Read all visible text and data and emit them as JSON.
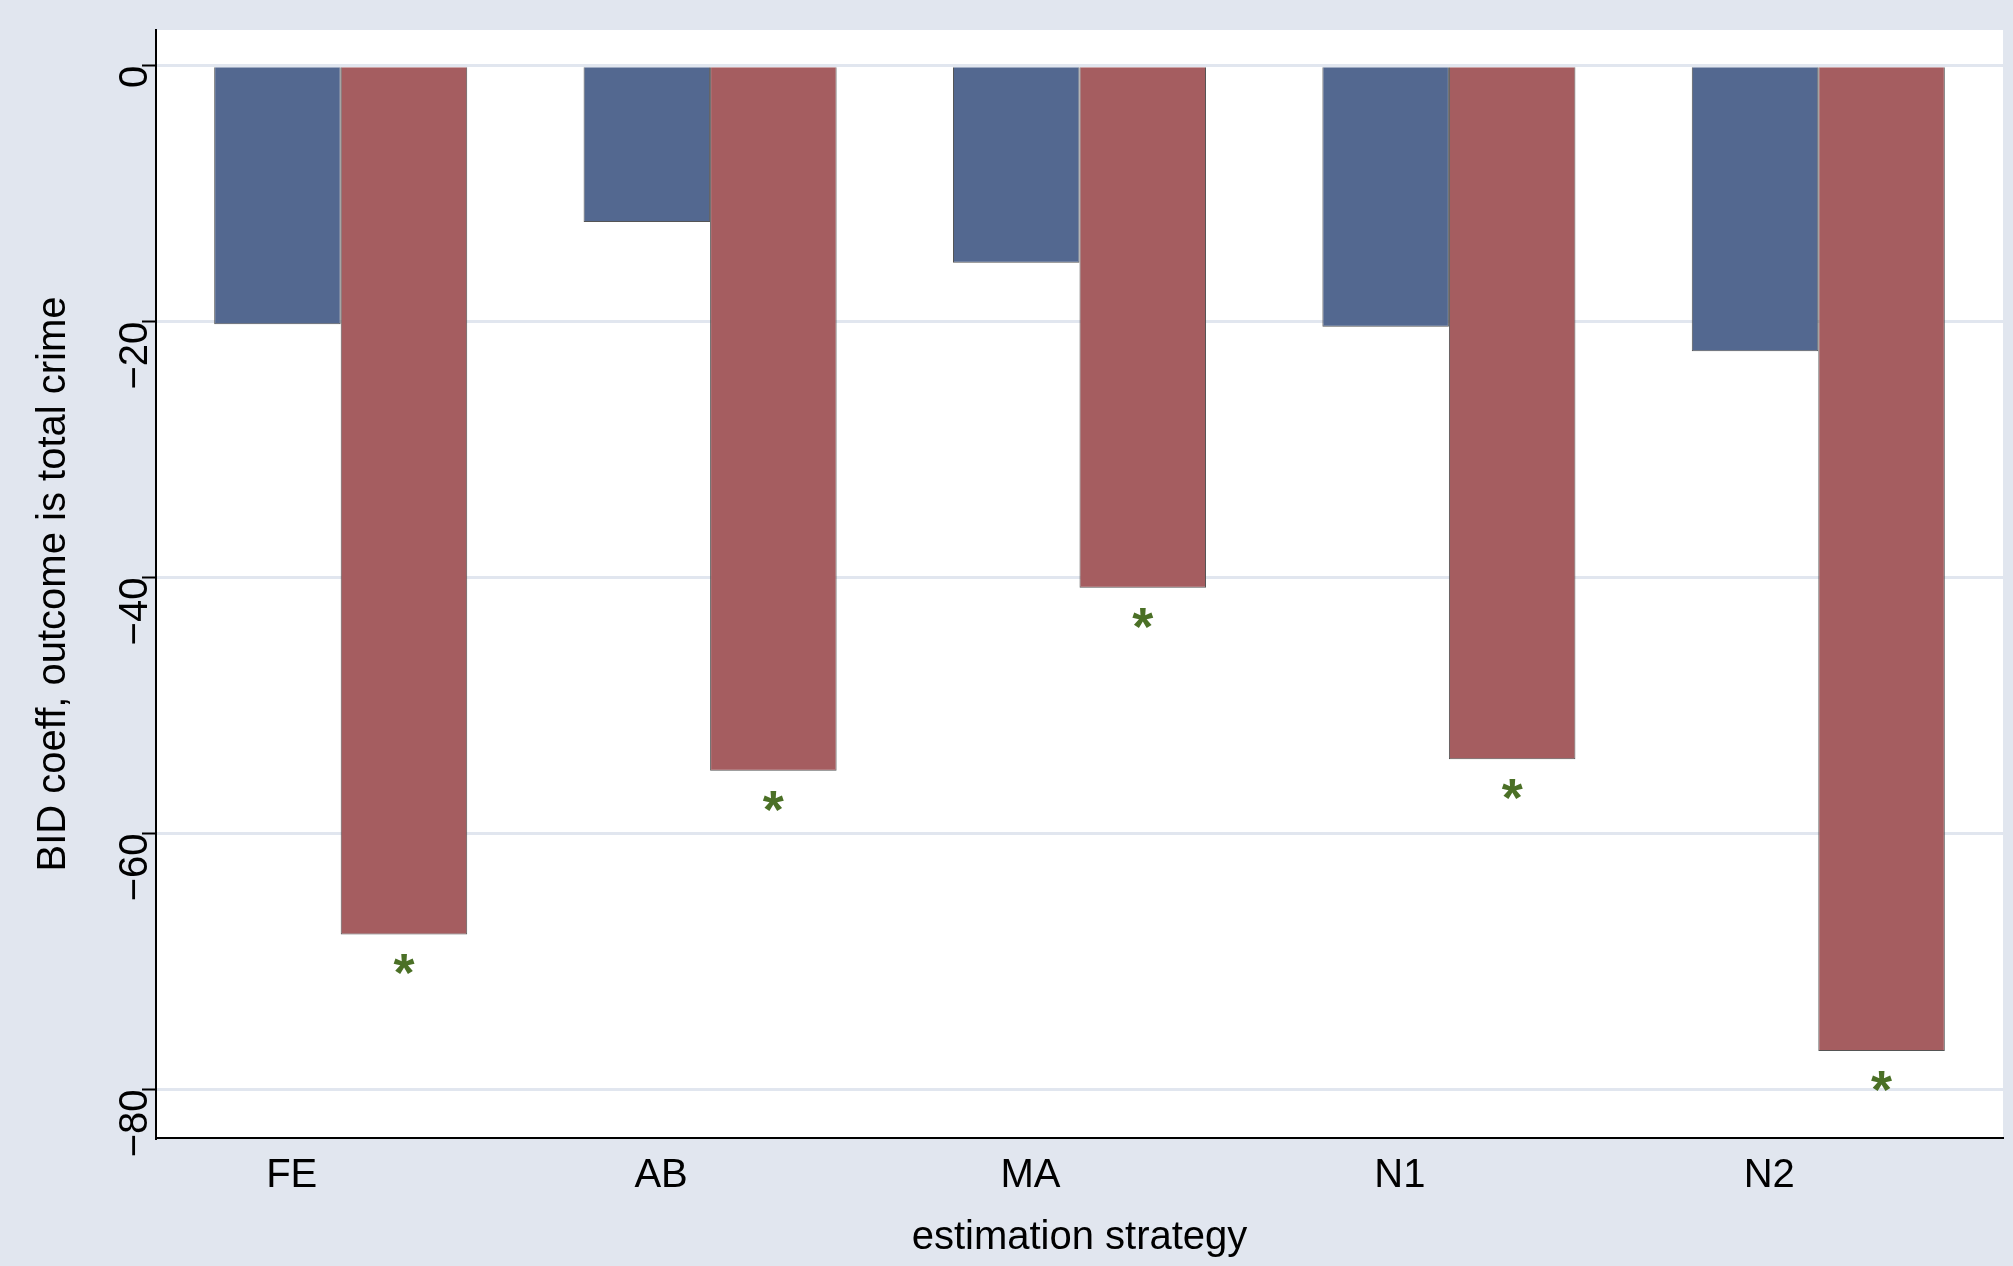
{
  "chart_data": {
    "type": "bar",
    "xlabel": "estimation strategy",
    "ylabel": "BID coeff, outcome is total crime",
    "categories": [
      "FE",
      "AB",
      "MA",
      "N1",
      "N2"
    ],
    "series": [
      {
        "color": "#536890",
        "values": [
          -20.2,
          -12.2,
          -15.4,
          -20.4,
          -22.3
        ]
      },
      {
        "color": "#a55d60",
        "values": [
          -67.9,
          -55.1,
          -40.8,
          -54.2,
          -77.0
        ]
      }
    ],
    "ylim": [
      -83.8,
      2.8
    ],
    "yticks": [
      {
        "value": 0,
        "label": "0"
      },
      {
        "value": -20,
        "label": "−20"
      },
      {
        "value": -40,
        "label": "−40"
      },
      {
        "value": -60,
        "label": "−60"
      },
      {
        "value": -80,
        "label": "−80"
      }
    ],
    "grid": "y",
    "legend": false,
    "annotations": [
      "*",
      "*",
      "*",
      "*",
      "*"
    ]
  }
}
